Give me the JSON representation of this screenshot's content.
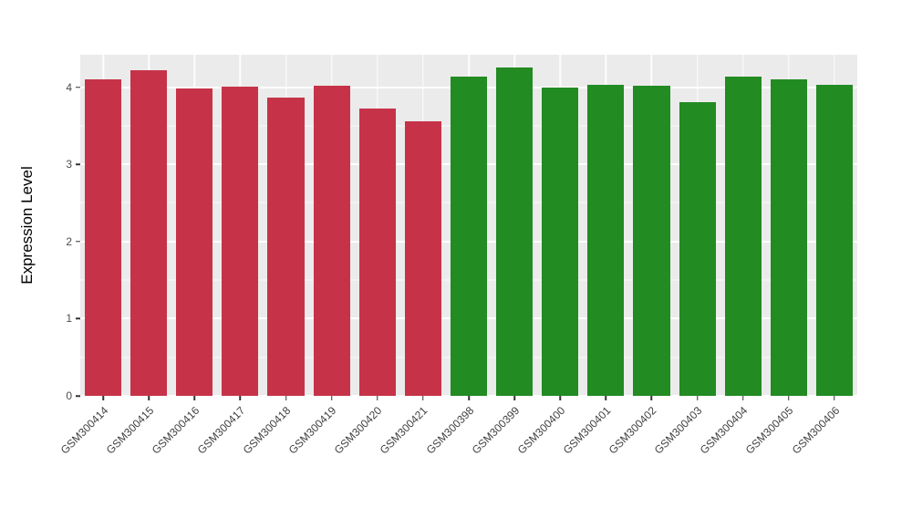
{
  "chart_data": {
    "type": "bar",
    "title": "",
    "xlabel": "",
    "ylabel": "Expression Level",
    "ylim": [
      0,
      4.42
    ],
    "yticks": [
      0,
      1,
      2,
      3,
      4
    ],
    "grid": "ggplot style: gray panel, white major/minor horizontal gridlines, white vertical gridlines at category centers",
    "legend": "none",
    "categories": [
      "GSM300414",
      "GSM300415",
      "GSM300416",
      "GSM300417",
      "GSM300418",
      "GSM300419",
      "GSM300420",
      "GSM300421",
      "GSM300398",
      "GSM300399",
      "GSM300400",
      "GSM300401",
      "GSM300402",
      "GSM300403",
      "GSM300404",
      "GSM300405",
      "GSM300406"
    ],
    "values": [
      4.1,
      4.22,
      3.98,
      4.01,
      3.86,
      4.02,
      3.72,
      3.56,
      4.14,
      4.25,
      4.0,
      4.03,
      4.02,
      3.81,
      4.14,
      4.1,
      4.03
    ],
    "colors": [
      "#C63349",
      "#C63349",
      "#C63349",
      "#C63349",
      "#C63349",
      "#C63349",
      "#C63349",
      "#C63349",
      "#228B22",
      "#228B22",
      "#228B22",
      "#228B22",
      "#228B22",
      "#228B22",
      "#228B22",
      "#228B22",
      "#228B22"
    ],
    "groups": [
      {
        "name": "red-group",
        "color": "#C63349",
        "first": "GSM300414",
        "last": "GSM300421"
      },
      {
        "name": "green-group",
        "color": "#228B22",
        "first": "GSM300398",
        "last": "GSM300406"
      }
    ]
  },
  "style": {
    "panel_bg": "#EBEBEB",
    "grid_color": "#FFFFFF",
    "axis_text_color": "#4D4D4D",
    "tick_color": "#333333"
  }
}
